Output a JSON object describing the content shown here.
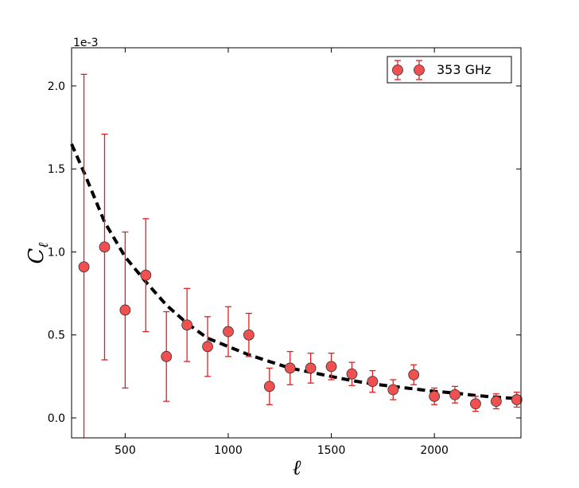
{
  "chart_data": {
    "type": "scatter",
    "scale_label": "1e-3",
    "xlabel": "ℓ",
    "ylabel_main": "C",
    "ylabel_sub": "ℓ",
    "xlim": [
      240,
      2420
    ],
    "ylim": [
      -0.12,
      2.23
    ],
    "x_ticks": [
      500,
      1000,
      1500,
      2000
    ],
    "y_ticks": [
      0.0,
      0.5,
      1.0,
      1.5,
      2.0
    ],
    "x_tick_labels": [
      "500",
      "1000",
      "1500",
      "2000"
    ],
    "y_tick_labels": [
      "0.0",
      "0.5",
      "1.0",
      "1.5",
      "2.0"
    ],
    "legend": {
      "label": "353 GHz",
      "position": "top-right"
    },
    "series": [
      {
        "name": "353 GHz",
        "marker_color": "#f05050",
        "errorbar_color": "#e02020",
        "points": [
          {
            "x": 300,
            "y": 0.91,
            "err": 1.16
          },
          {
            "x": 400,
            "y": 1.03,
            "err": 0.68
          },
          {
            "x": 500,
            "y": 0.65,
            "err": 0.47
          },
          {
            "x": 600,
            "y": 0.86,
            "err": 0.34
          },
          {
            "x": 700,
            "y": 0.37,
            "err": 0.27
          },
          {
            "x": 800,
            "y": 0.56,
            "err": 0.22
          },
          {
            "x": 900,
            "y": 0.43,
            "err": 0.18
          },
          {
            "x": 1000,
            "y": 0.52,
            "err": 0.15
          },
          {
            "x": 1100,
            "y": 0.5,
            "err": 0.13
          },
          {
            "x": 1200,
            "y": 0.19,
            "err": 0.11
          },
          {
            "x": 1300,
            "y": 0.3,
            "err": 0.1
          },
          {
            "x": 1400,
            "y": 0.3,
            "err": 0.09
          },
          {
            "x": 1500,
            "y": 0.31,
            "err": 0.08
          },
          {
            "x": 1600,
            "y": 0.265,
            "err": 0.07
          },
          {
            "x": 1700,
            "y": 0.22,
            "err": 0.065
          },
          {
            "x": 1800,
            "y": 0.17,
            "err": 0.06
          },
          {
            "x": 1900,
            "y": 0.26,
            "err": 0.06
          },
          {
            "x": 2000,
            "y": 0.13,
            "err": 0.05
          },
          {
            "x": 2100,
            "y": 0.14,
            "err": 0.05
          },
          {
            "x": 2200,
            "y": 0.085,
            "err": 0.045
          },
          {
            "x": 2300,
            "y": 0.1,
            "err": 0.045
          },
          {
            "x": 2400,
            "y": 0.11,
            "err": 0.045
          }
        ]
      }
    ],
    "model_curve": {
      "style": "dashed",
      "color": "#000000",
      "points": [
        {
          "x": 240,
          "y": 1.65
        },
        {
          "x": 300,
          "y": 1.48
        },
        {
          "x": 400,
          "y": 1.18
        },
        {
          "x": 500,
          "y": 0.97
        },
        {
          "x": 600,
          "y": 0.82
        },
        {
          "x": 700,
          "y": 0.68
        },
        {
          "x": 800,
          "y": 0.57
        },
        {
          "x": 900,
          "y": 0.48
        },
        {
          "x": 1000,
          "y": 0.43
        },
        {
          "x": 1100,
          "y": 0.38
        },
        {
          "x": 1200,
          "y": 0.34
        },
        {
          "x": 1300,
          "y": 0.3
        },
        {
          "x": 1400,
          "y": 0.275
        },
        {
          "x": 1500,
          "y": 0.25
        },
        {
          "x": 1600,
          "y": 0.225
        },
        {
          "x": 1700,
          "y": 0.205
        },
        {
          "x": 1800,
          "y": 0.19
        },
        {
          "x": 1900,
          "y": 0.175
        },
        {
          "x": 2000,
          "y": 0.16
        },
        {
          "x": 2100,
          "y": 0.15
        },
        {
          "x": 2200,
          "y": 0.135
        },
        {
          "x": 2300,
          "y": 0.125
        },
        {
          "x": 2420,
          "y": 0.115
        }
      ]
    }
  }
}
